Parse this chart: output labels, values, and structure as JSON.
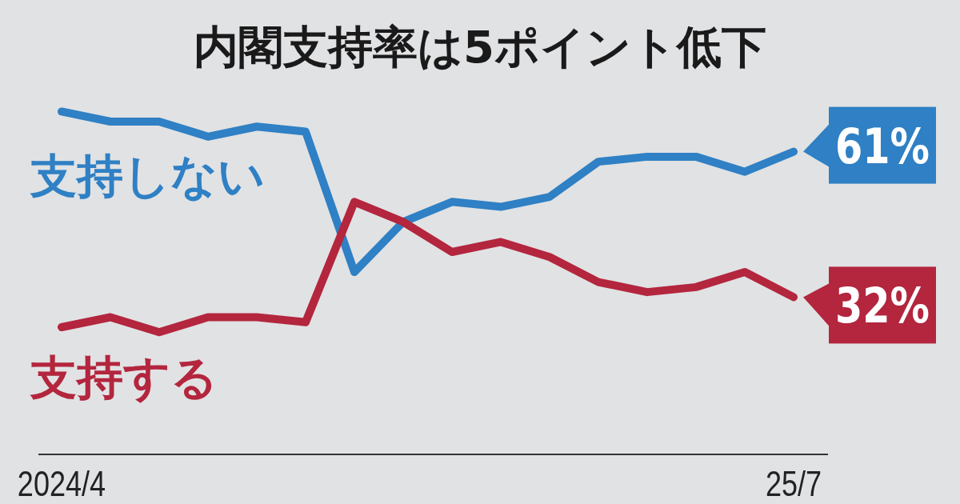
{
  "chart_data": {
    "type": "line",
    "title": "内閣支持率は5ポイント低下",
    "categories": [
      "2024/4",
      null,
      null,
      null,
      null,
      null,
      null,
      null,
      null,
      null,
      null,
      null,
      null,
      null,
      null,
      "25/7"
    ],
    "tick_labels": "x",
    "legend": false,
    "line_style": "solid",
    "marker": "none",
    "series": [
      {
        "name": "支持しない",
        "color": "#2f80c4",
        "values": [
          69,
          67,
          67,
          64,
          66,
          65,
          37,
          47,
          51,
          50,
          52,
          59,
          60,
          60,
          57,
          61
        ],
        "value_labels": [
          null,
          null,
          null,
          null,
          null,
          null,
          null,
          null,
          null,
          null,
          null,
          null,
          null,
          null,
          null,
          "61%"
        ]
      },
      {
        "name": "支持する",
        "color": "#b3263e",
        "values": [
          26,
          28,
          25,
          28,
          28,
          27,
          51,
          47,
          41,
          43,
          40,
          35,
          33,
          34,
          37,
          32
        ],
        "value_labels": [
          null,
          null,
          null,
          null,
          null,
          null,
          null,
          null,
          null,
          null,
          null,
          null,
          null,
          null,
          null,
          "32%"
        ]
      }
    ]
  }
}
